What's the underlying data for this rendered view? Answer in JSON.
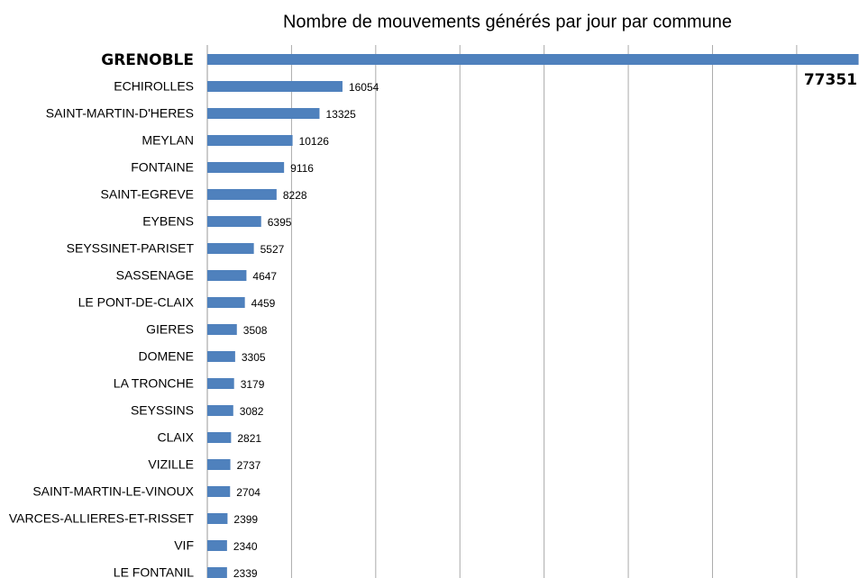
{
  "chart_data": {
    "type": "bar",
    "orientation": "horizontal",
    "title": "Nombre de mouvements générés par jour par commune",
    "categories": [
      "GRENOBLE",
      "ECHIROLLES",
      "SAINT-MARTIN-D'HERES",
      "MEYLAN",
      "FONTAINE",
      "SAINT-EGREVE",
      "EYBENS",
      "SEYSSINET-PARISET",
      "SASSENAGE",
      "LE PONT-DE-CLAIX",
      "GIERES",
      "DOMENE",
      "LA TRONCHE",
      "SEYSSINS",
      "CLAIX",
      "VIZILLE",
      "SAINT-MARTIN-LE-VINOUX",
      "VARCES-ALLIERES-ET-RISSET",
      "VIF",
      "LE FONTANIL"
    ],
    "values": [
      77351,
      16054,
      13325,
      10126,
      9116,
      8228,
      6395,
      5527,
      4647,
      4459,
      3508,
      3305,
      3179,
      3082,
      2821,
      2737,
      2704,
      2399,
      2340,
      2339
    ],
    "color": "#4f81bd",
    "xlim": [
      0,
      77400
    ],
    "xticks": [
      0,
      10000,
      20000,
      30000,
      40000,
      50000,
      60000,
      70000
    ],
    "grid": true
  }
}
